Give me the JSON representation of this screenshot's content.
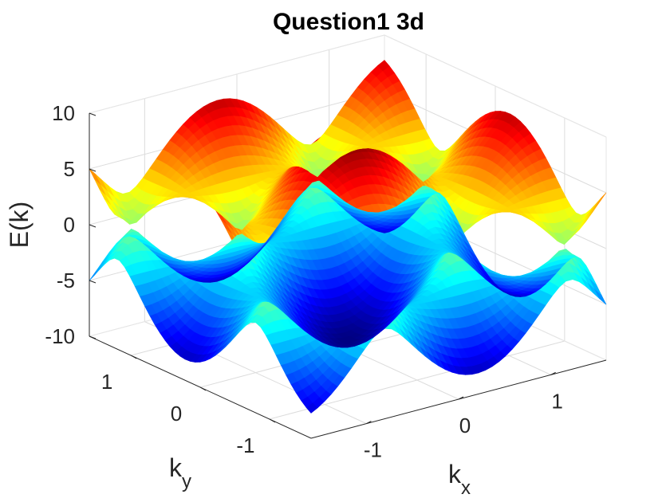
{
  "chart_data": {
    "type": "surface",
    "title": "Question1 3d",
    "xlabel": "k",
    "xlabel_sub": "x",
    "ylabel": "k",
    "ylabel_sub": "y",
    "zlabel": "E(k)",
    "xlim": [
      -1.6,
      1.6
    ],
    "ylim": [
      -1.6,
      1.6
    ],
    "zlim": [
      -10,
      10
    ],
    "x_ticks": [
      {
        "value": -1,
        "label": "-1"
      },
      {
        "value": 0,
        "label": "0"
      },
      {
        "value": 1,
        "label": "1"
      }
    ],
    "y_ticks": [
      {
        "value": -1,
        "label": "-1"
      },
      {
        "value": 0,
        "label": "0"
      },
      {
        "value": 1,
        "label": "1"
      }
    ],
    "z_ticks": [
      {
        "value": -10,
        "label": "-10"
      },
      {
        "value": -5,
        "label": "-5"
      },
      {
        "value": 0,
        "label": "0"
      },
      {
        "value": 5,
        "label": "5"
      },
      {
        "value": 10,
        "label": "10"
      }
    ],
    "grid": true,
    "colormap": "jet",
    "surfaces": [
      "upper band E(k) ≥ 0",
      "lower band E(k) ≤ 0"
    ]
  }
}
